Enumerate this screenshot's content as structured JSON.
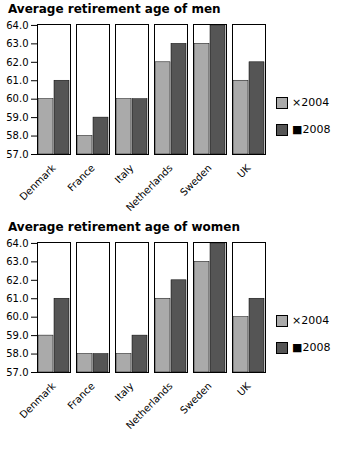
{
  "chart_data": [
    {
      "type": "bar",
      "title": "Average retirement age of men",
      "categories": [
        "Denmark",
        "France",
        "Italy",
        "Netherlands",
        "Sweden",
        "UK"
      ],
      "series": [
        {
          "name": "×2004",
          "color": "#aaaaaa",
          "values": [
            60,
            58,
            60,
            62,
            63,
            61
          ]
        },
        {
          "name": "■2008",
          "color": "#555555",
          "values": [
            61,
            59,
            60,
            63,
            64,
            62
          ]
        }
      ],
      "ylim": [
        57,
        64.05
      ],
      "yticks": [
        57,
        58,
        59,
        60,
        61,
        62,
        63,
        64
      ],
      "grid": false,
      "legend": "right"
    },
    {
      "type": "bar",
      "title": "Average retirement age of women",
      "categories": [
        "Denmark",
        "France",
        "Italy",
        "Netherlands",
        "Sweden",
        "UK"
      ],
      "series": [
        {
          "name": "×2004",
          "color": "#aaaaaa",
          "values": [
            59,
            58,
            58,
            61,
            63,
            60
          ]
        },
        {
          "name": "■2008",
          "color": "#555555",
          "values": [
            61,
            58,
            59,
            62,
            64,
            61
          ]
        }
      ],
      "ylim": [
        57,
        64.05
      ],
      "yticks": [
        57,
        58,
        59,
        60,
        61,
        62,
        63,
        64
      ],
      "grid": false,
      "legend": "right"
    }
  ]
}
